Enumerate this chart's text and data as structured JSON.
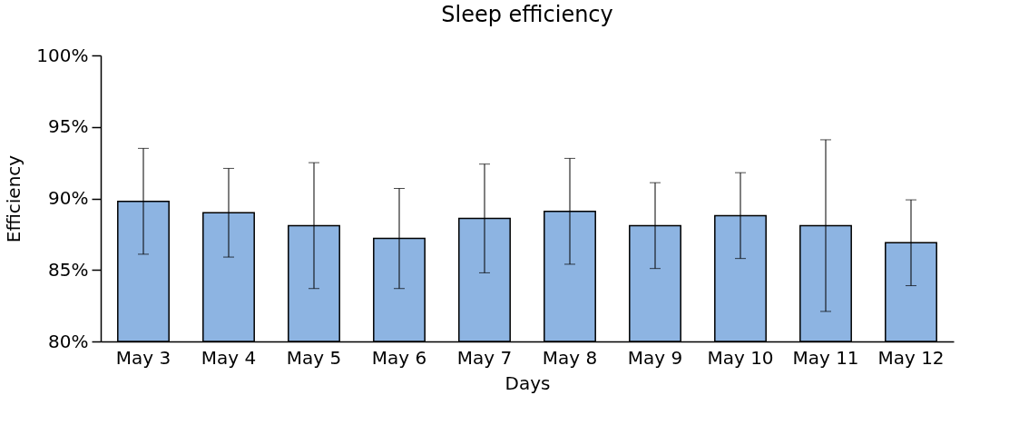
{
  "chart_data": {
    "type": "bar",
    "title": "Sleep efficiency",
    "xlabel": "Days",
    "ylabel": "Efficiency",
    "categories": [
      "May 3",
      "May 4",
      "May 5",
      "May 6",
      "May 7",
      "May 8",
      "May 9",
      "May 10",
      "May 11",
      "May 12"
    ],
    "values": [
      89.8,
      89.0,
      88.1,
      87.2,
      88.6,
      89.1,
      88.1,
      88.8,
      88.1,
      86.9
    ],
    "errors": [
      3.7,
      3.1,
      4.4,
      3.5,
      3.8,
      3.7,
      3.0,
      3.0,
      6.0,
      3.0
    ],
    "color": "#8db4e2",
    "ylim": [
      80,
      100
    ],
    "yticks": [
      {
        "value": 80,
        "label": "80%"
      },
      {
        "value": 85,
        "label": "85%"
      },
      {
        "value": 90,
        "label": "90%"
      },
      {
        "value": 95,
        "label": "95%"
      },
      {
        "value": 100,
        "label": "100%"
      }
    ],
    "grid": false
  }
}
